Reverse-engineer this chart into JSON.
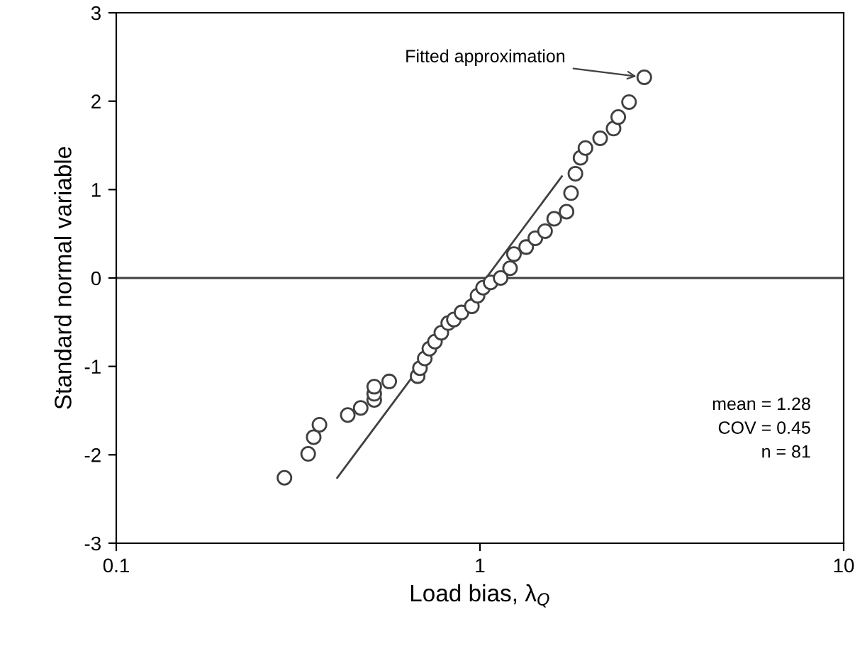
{
  "chart_data": {
    "type": "scatter",
    "xlabel": "Load bias, λ$_{Q}$",
    "ylabel": "Standard normal variable",
    "log": "x",
    "xlim": [
      0.1,
      10
    ],
    "xticks": [
      0.1,
      1,
      10
    ],
    "ylim": [
      -3,
      3
    ],
    "yticks": [
      -3,
      -2,
      -1,
      0,
      1,
      2,
      3
    ],
    "grid": false,
    "series": [
      {
        "marker": "circle",
        "color": "#404040",
        "x": [
          0.29,
          0.337,
          0.349,
          0.362,
          0.433,
          0.47,
          0.512,
          0.512,
          0.512,
          0.563,
          0.674,
          0.684,
          0.705,
          0.726,
          0.752,
          0.783,
          0.818,
          0.848,
          0.89,
          0.95,
          0.985,
          1.02,
          1.07,
          1.14,
          1.21,
          1.24,
          1.34,
          1.42,
          1.51,
          1.6,
          1.73,
          1.78,
          1.83,
          1.89,
          1.95,
          2.14,
          2.33,
          2.4,
          2.57,
          2.83
        ],
        "values": [
          -2.26,
          -1.99,
          -1.8,
          -1.66,
          -1.55,
          -1.47,
          -1.38,
          -1.31,
          -1.23,
          -1.17,
          -1.11,
          -1.02,
          -0.91,
          -0.8,
          -0.72,
          -0.62,
          -0.51,
          -0.47,
          -0.39,
          -0.32,
          -0.2,
          -0.11,
          -0.05,
          0,
          0.11,
          0.27,
          0.35,
          0.45,
          0.53,
          0.67,
          0.75,
          0.96,
          1.18,
          1.36,
          1.47,
          1.58,
          1.69,
          1.82,
          1.99,
          2.27
        ]
      },
      {
        "type": "line",
        "color": "#404040",
        "x": [
          0.405,
          1.68
        ],
        "values": [
          -2.26,
          1.15
        ],
        "line_style": "solid",
        "marker": "none"
      }
    ],
    "ref_lines": [
      {
        "axis": "y",
        "value": 0,
        "color": "#404040",
        "line_style": "solid"
      }
    ],
    "annotations": [
      {
        "text": "Fitted approximation",
        "x": 2.83,
        "y": 2.27
      },
      "mean = 1.28",
      "COV = 0.45",
      "n = 81"
    ]
  }
}
